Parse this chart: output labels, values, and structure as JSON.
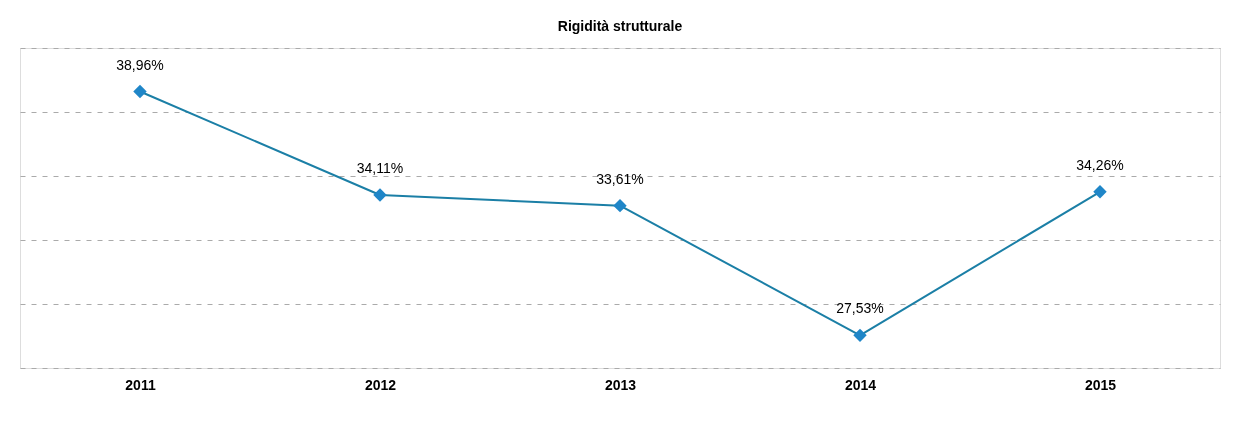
{
  "chart_data": {
    "type": "line",
    "title": "Rigidità strutturale",
    "categories": [
      "2011",
      "2012",
      "2013",
      "2014",
      "2015"
    ],
    "series": [
      {
        "color": "#1b7fa6",
        "values": [
          38.96,
          34.11,
          33.61,
          27.53,
          34.26
        ],
        "value_labels": [
          "38,96%",
          "34,11%",
          "33,61%",
          "27,53%",
          "34,26%"
        ]
      }
    ],
    "ylim": [
      26,
      41
    ],
    "yticks": [
      {
        "value": 26,
        "label": null
      },
      {
        "value": 29,
        "label": null
      },
      {
        "value": 32,
        "label": null
      },
      {
        "value": 35,
        "label": null
      },
      {
        "value": 38,
        "label": null
      },
      {
        "value": 41,
        "label": null
      }
    ],
    "tick_labels": "x",
    "grid": "y",
    "marker": "diamond",
    "line_style": "solid"
  }
}
